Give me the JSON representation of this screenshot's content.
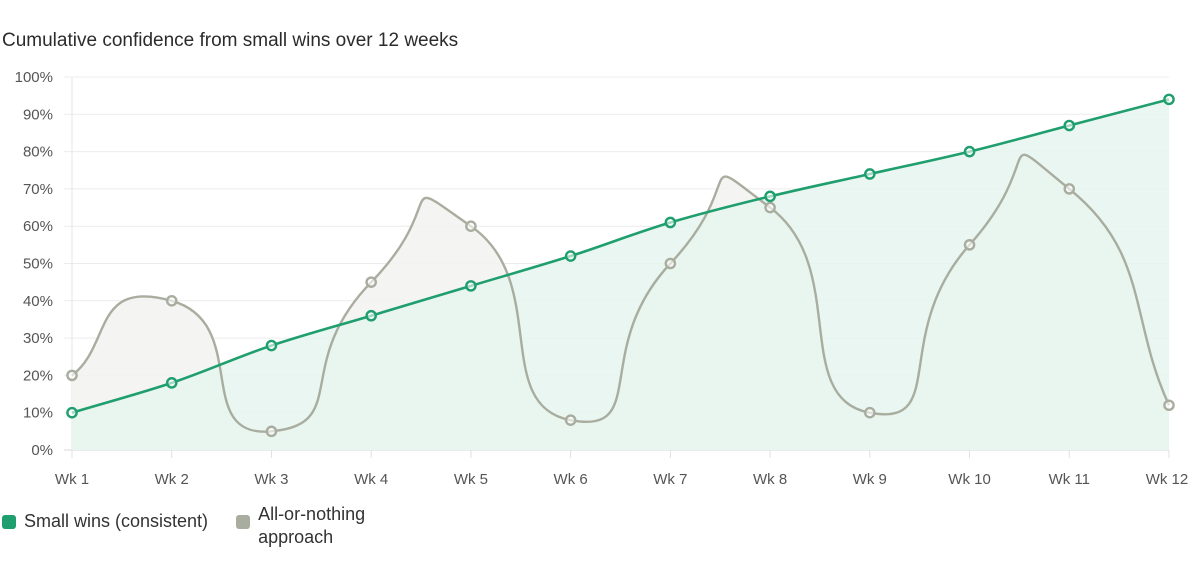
{
  "chart_data": {
    "type": "line",
    "title": "Cumulative confidence from small wins over 12 weeks",
    "categories": [
      "Wk 1",
      "Wk 2",
      "Wk 3",
      "Wk 4",
      "Wk 5",
      "Wk 6",
      "Wk 7",
      "Wk 8",
      "Wk 9",
      "Wk 10",
      "Wk 11",
      "Wk 12"
    ],
    "ylim": [
      0,
      100
    ],
    "yticks": [
      "0%",
      "10%",
      "20%",
      "30%",
      "40%",
      "50%",
      "60%",
      "70%",
      "80%",
      "90%",
      "100%"
    ],
    "grid": true,
    "legend_position": "bottom-left",
    "series": [
      {
        "name": "Small wins (consistent)",
        "values": [
          10,
          18,
          28,
          36,
          44,
          52,
          61,
          68,
          74,
          80,
          87,
          94
        ],
        "color": "#1f9e6e",
        "fill": "#e6f4ef"
      },
      {
        "name": "All-or-nothing approach",
        "values": [
          20,
          40,
          5,
          45,
          60,
          8,
          50,
          65,
          10,
          55,
          70,
          12
        ],
        "color": "#a9ad9f",
        "fill": "#f3f3f1"
      }
    ]
  }
}
